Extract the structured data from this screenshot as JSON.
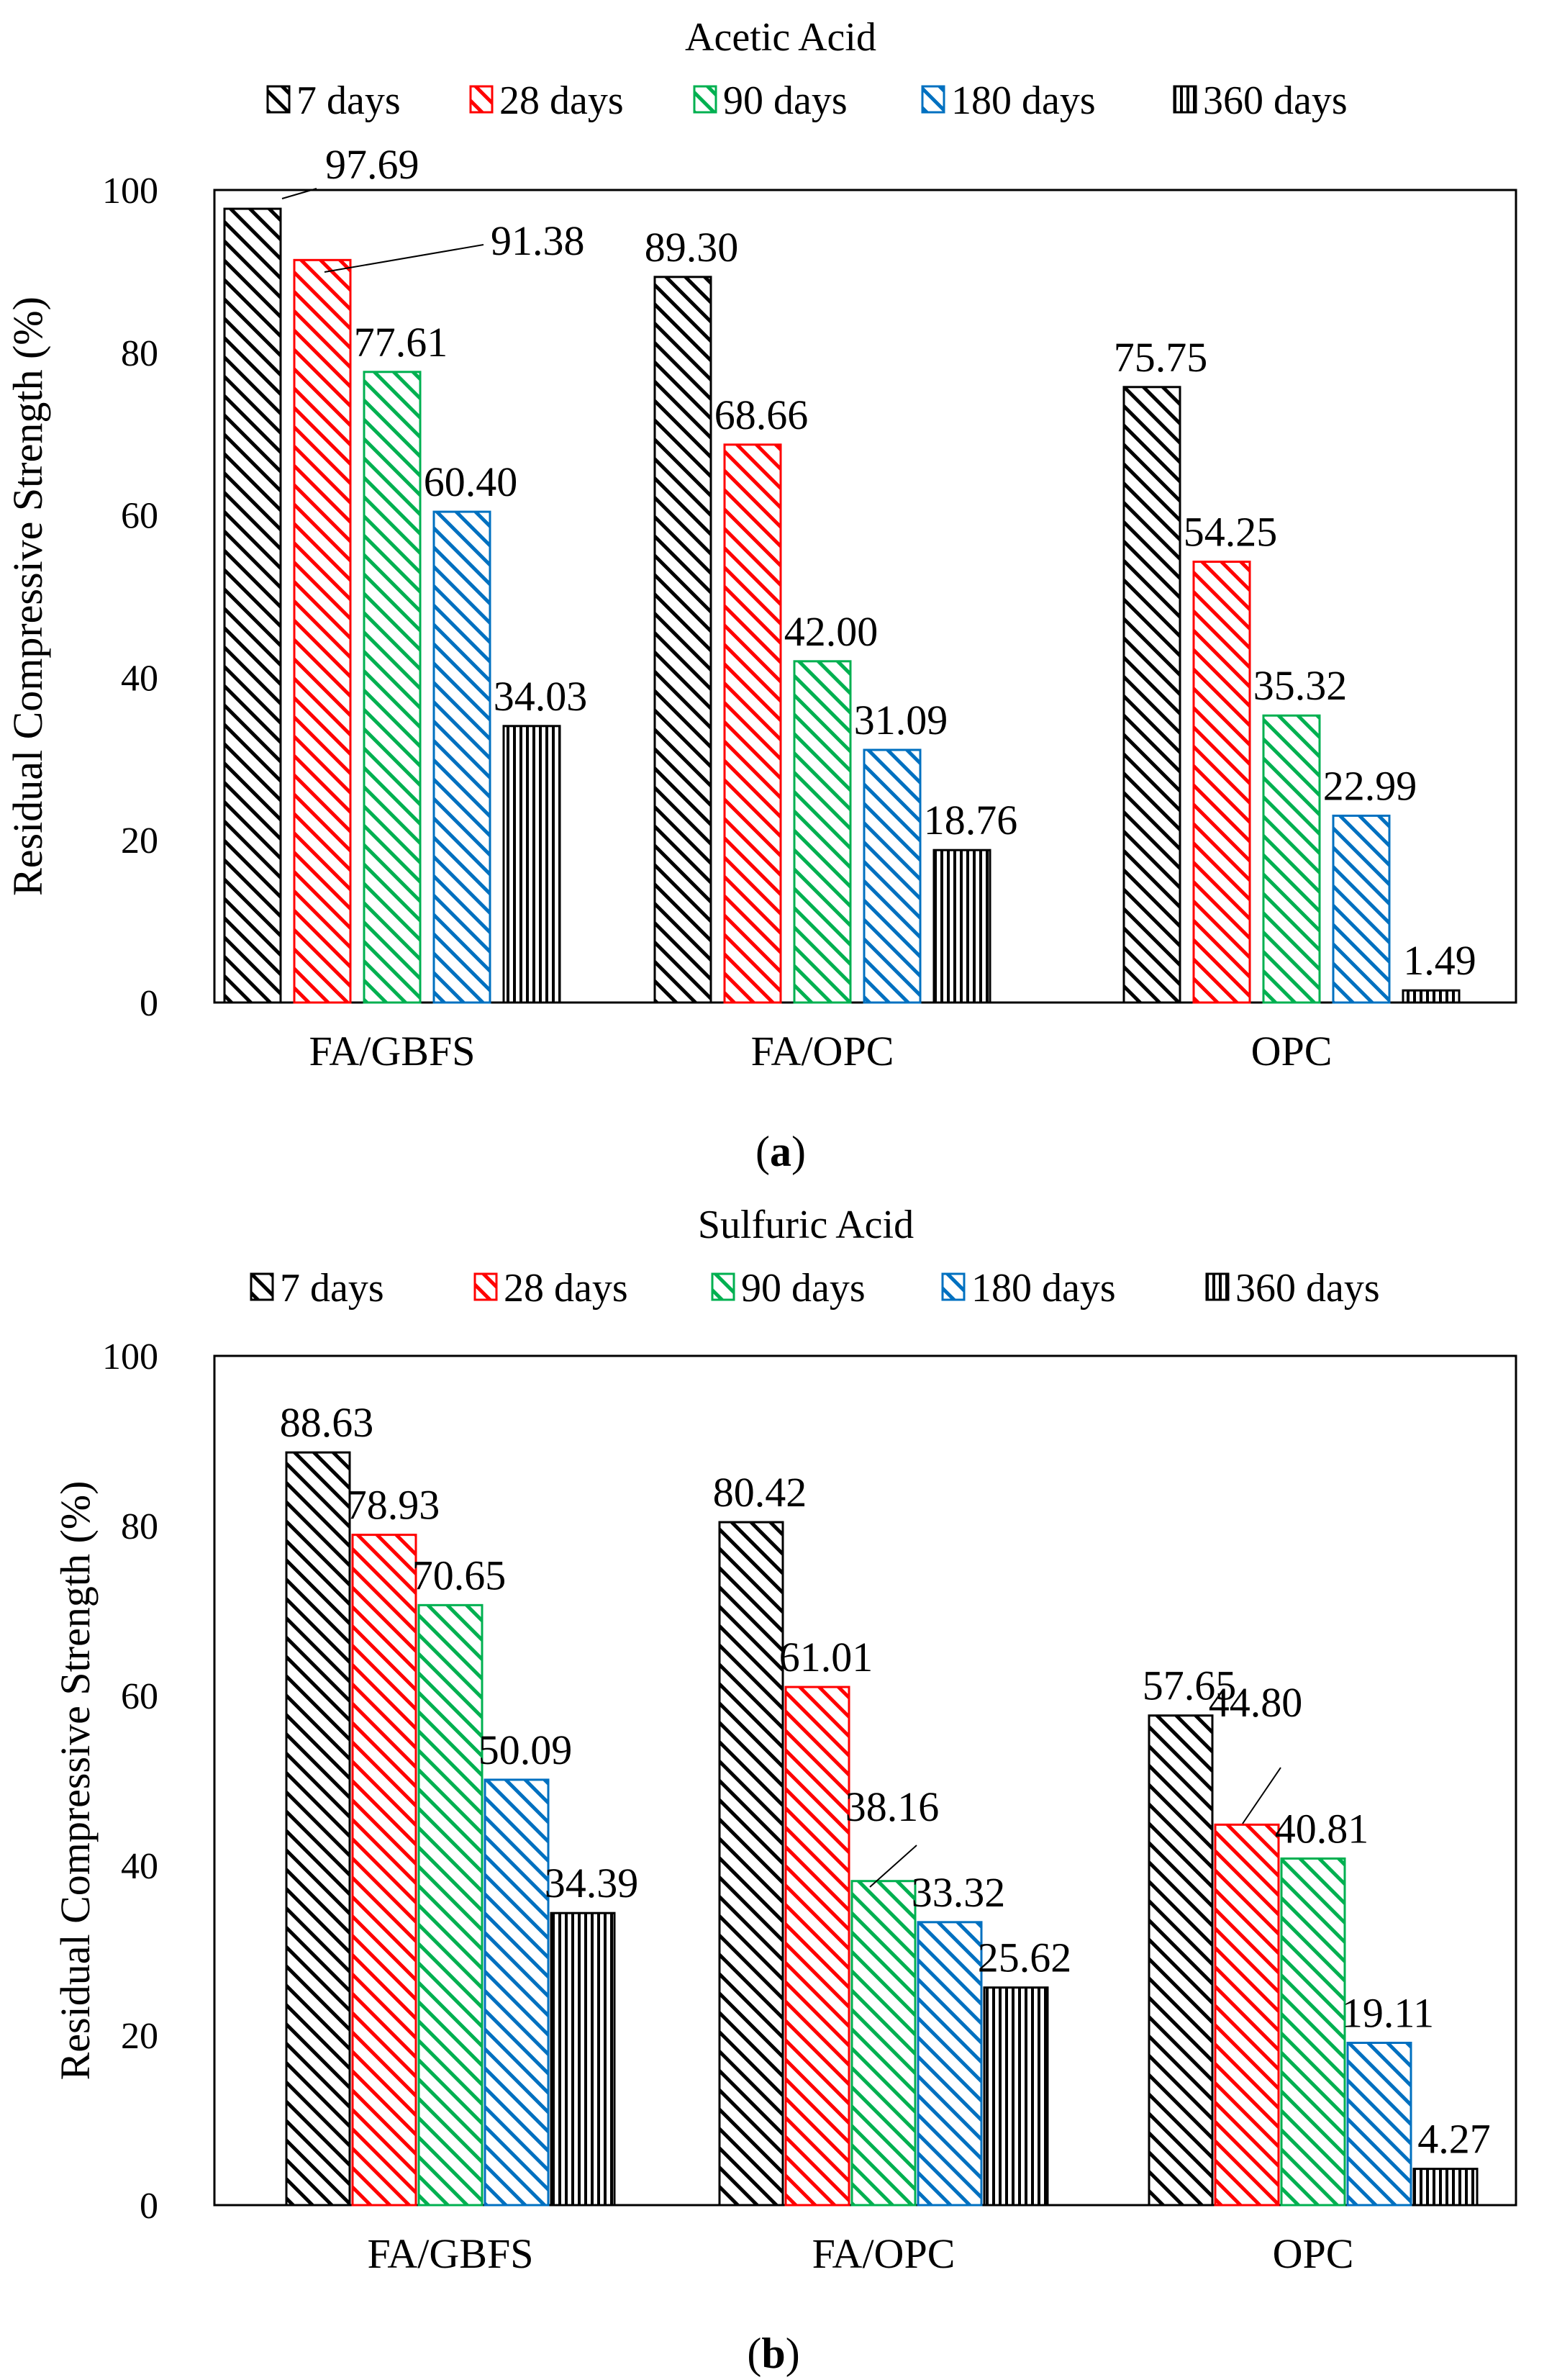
{
  "chart_data": [
    {
      "type": "bar",
      "panel": "a",
      "title": "Acetic Acid",
      "caption_letter": "a",
      "categories": [
        "FA/GBFS",
        "FA/OPC",
        "OPC"
      ],
      "ylabel": "Residual Compressive Strength (%)",
      "xlabel": "",
      "ylim": [
        0,
        100
      ],
      "yticks": [
        0,
        20,
        40,
        60,
        80,
        100
      ],
      "legend_position": "top",
      "series": [
        {
          "name": "7 days",
          "color": "#000000",
          "pattern": "diag",
          "values": [
            97.69,
            89.3,
            75.75
          ],
          "labels": [
            "97.69",
            "89.30",
            "75.75"
          ]
        },
        {
          "name": "28 days",
          "color": "#ff0000",
          "pattern": "diag",
          "values": [
            91.38,
            68.66,
            54.25
          ],
          "labels": [
            "91.38",
            "68.66",
            "54.25"
          ]
        },
        {
          "name": "90 days",
          "color": "#00b050",
          "pattern": "diag",
          "values": [
            77.61,
            42.0,
            35.32
          ],
          "labels": [
            "77.61",
            "42.00",
            "35.32"
          ]
        },
        {
          "name": "180 days",
          "color": "#0070c0",
          "pattern": "diag",
          "values": [
            60.4,
            31.09,
            22.99
          ],
          "labels": [
            "60.40",
            "31.09",
            "22.99"
          ]
        },
        {
          "name": "360 days",
          "color": "#000000",
          "pattern": "vert",
          "values": [
            34.03,
            18.76,
            1.49
          ],
          "labels": [
            "34.03",
            "18.76",
            "1.49"
          ]
        }
      ]
    },
    {
      "type": "bar",
      "panel": "b",
      "title": "Sulfuric Acid",
      "caption_letter": "b",
      "categories": [
        "FA/GBFS",
        "FA/OPC",
        "OPC"
      ],
      "ylabel": "Residual Compressive Strength (%)",
      "xlabel": "",
      "ylim": [
        0,
        100
      ],
      "yticks": [
        0,
        20,
        40,
        60,
        80,
        100
      ],
      "legend_position": "top",
      "series": [
        {
          "name": "7 days",
          "color": "#000000",
          "pattern": "diag",
          "values": [
            88.63,
            80.42,
            57.65
          ],
          "labels": [
            "88.63",
            "80.42",
            "57.65"
          ]
        },
        {
          "name": "28 days",
          "color": "#ff0000",
          "pattern": "diag",
          "values": [
            78.93,
            61.01,
            44.8
          ],
          "labels": [
            "78.93",
            "61.01",
            "44.80"
          ]
        },
        {
          "name": "90 days",
          "color": "#00b050",
          "pattern": "diag",
          "values": [
            70.65,
            38.16,
            40.81
          ],
          "labels": [
            "70.65",
            "38.16",
            "40.81"
          ]
        },
        {
          "name": "180 days",
          "color": "#0070c0",
          "pattern": "diag",
          "values": [
            50.09,
            33.32,
            19.11
          ],
          "labels": [
            "50.09",
            "33.32",
            "19.11"
          ]
        },
        {
          "name": "360 days",
          "color": "#000000",
          "pattern": "vert",
          "values": [
            34.39,
            25.62,
            4.27
          ],
          "labels": [
            "34.39",
            "25.62",
            "4.27"
          ]
        }
      ]
    }
  ]
}
